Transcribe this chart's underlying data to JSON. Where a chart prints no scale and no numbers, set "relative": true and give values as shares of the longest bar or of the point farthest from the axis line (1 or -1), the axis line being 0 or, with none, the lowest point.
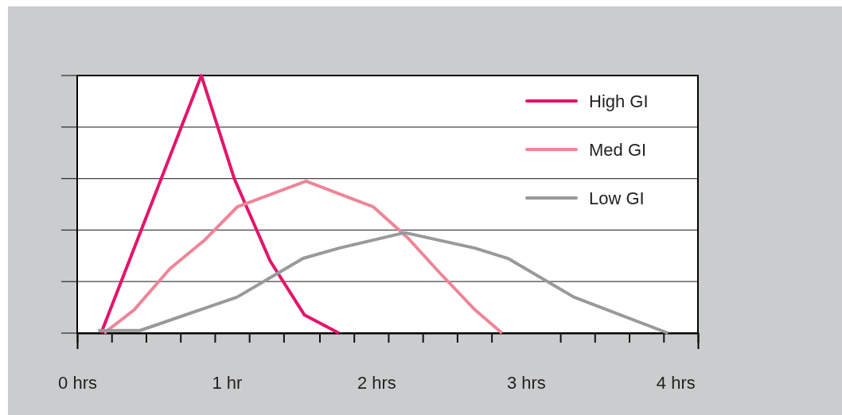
{
  "chart_data": {
    "type": "line",
    "relative": true,
    "xlim": [
      0,
      4.15
    ],
    "xticks": [
      {
        "value": 0,
        "label": "0 hrs"
      },
      {
        "value": 0.23,
        "label": null
      },
      {
        "value": 0.46,
        "label": null
      },
      {
        "value": 0.69,
        "label": null
      },
      {
        "value": 0.92,
        "label": null
      },
      {
        "value": 1,
        "label": "1 hr"
      },
      {
        "value": 1.15,
        "label": null
      },
      {
        "value": 1.38,
        "label": null
      },
      {
        "value": 1.62,
        "label": null
      },
      {
        "value": 1.85,
        "label": null
      },
      {
        "value": 2,
        "label": "2 hrs"
      },
      {
        "value": 2.08,
        "label": null
      },
      {
        "value": 2.31,
        "label": null
      },
      {
        "value": 2.54,
        "label": null
      },
      {
        "value": 2.77,
        "label": null
      },
      {
        "value": 3,
        "label": "3 hrs"
      },
      {
        "value": 3.23,
        "label": null
      },
      {
        "value": 3.46,
        "label": null
      },
      {
        "value": 3.69,
        "label": null
      },
      {
        "value": 3.92,
        "label": null
      },
      {
        "value": 4,
        "label": "4 hrs"
      },
      {
        "value": 4.15,
        "label": null
      }
    ],
    "grid": "y",
    "legend": "top right",
    "line_style": "solid",
    "marker": "none",
    "series": [
      {
        "name": "High GI",
        "color": "#e4146a",
        "x": [
          0.16,
          0.83,
          1.05,
          1.29,
          1.52,
          1.75
        ],
        "values": [
          0,
          1,
          0.6,
          0.28,
          0.07,
          0
        ]
      },
      {
        "name": "Med GI",
        "color": "#ee8598",
        "x": [
          0.18,
          0.38,
          0.62,
          0.85,
          1.07,
          1.53,
          1.98,
          2.21,
          2.43,
          2.66,
          2.84
        ],
        "values": [
          0,
          0.09,
          0.25,
          0.36,
          0.49,
          0.59,
          0.49,
          0.37,
          0.23,
          0.09,
          0
        ]
      },
      {
        "name": "Low GI",
        "color": "#98999b",
        "x": [
          0.14,
          0.42,
          1.07,
          1.51,
          1.75,
          2.19,
          2.66,
          2.88,
          3.32,
          3.95
        ],
        "values": [
          0.01,
          0.01,
          0.14,
          0.29,
          0.33,
          0.39,
          0.33,
          0.29,
          0.14,
          0
        ]
      }
    ]
  }
}
